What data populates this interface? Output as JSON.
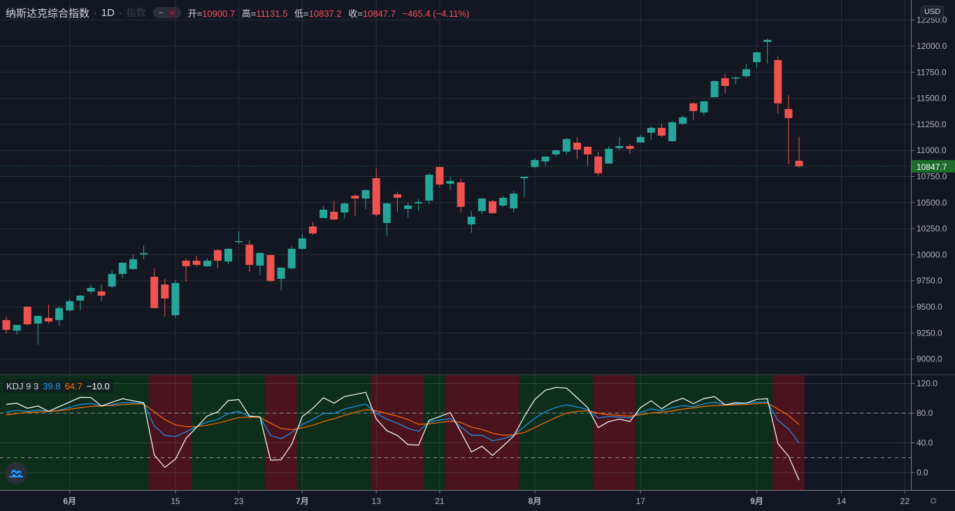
{
  "header": {
    "symbol": "纳斯达克综合指数",
    "interval": "1D",
    "sep": "·",
    "faded": "指数",
    "eye_icon": "−",
    "wave_icon": "≈",
    "open_label": "开=",
    "open": "10900.7",
    "high_label": "高=",
    "high": "11131.5",
    "low_label": "低=",
    "low": "10837.2",
    "close_label": "收=",
    "close": "10847.7",
    "change": "−465.4 (−4.11%)"
  },
  "currency": "USD",
  "last_price_label": "10847.7",
  "kdj_legend": {
    "name": "KDJ 9 3",
    "k": "39.8",
    "d": "64.7",
    "j": "−10.0"
  },
  "colors": {
    "up": "#26a69a",
    "down": "#ef5350",
    "k": "#2196f3",
    "d": "#ff6d00",
    "j": "#ffffff",
    "bull_band": "#0d2e1b",
    "bear_band": "#4a131d",
    "last_price": "#1e6b2a"
  },
  "chart_data": [
    {
      "type": "candlestick",
      "title": "纳斯达克综合指数 1D",
      "ylim": [
        8857,
        12442
      ],
      "yticks": [
        9000,
        9250,
        9500,
        9750,
        10000,
        10250,
        10500,
        10750,
        11000,
        11250,
        11500,
        11750,
        12000,
        12250
      ],
      "xticks": [
        {
          "label": "6月",
          "index": 6
        },
        {
          "label": "15",
          "index": 16
        },
        {
          "label": "23",
          "index": 22
        },
        {
          "label": "7月",
          "index": 28
        },
        {
          "label": "13",
          "index": 35
        },
        {
          "label": "21",
          "index": 41
        },
        {
          "label": "8月",
          "index": 50
        },
        {
          "label": "17",
          "index": 60
        },
        {
          "label": "9月",
          "index": 71
        },
        {
          "label": "14",
          "index": 79
        },
        {
          "label": "22",
          "index": 85
        }
      ],
      "last_price": 10847.7,
      "ohlc": [
        [
          9374,
          9407,
          9246,
          9280
        ],
        [
          9273,
          9330,
          9235,
          9327
        ],
        [
          9501,
          9505,
          9325,
          9333
        ],
        [
          9340,
          9414,
          9139,
          9414
        ],
        [
          9394,
          9521,
          9340,
          9360
        ],
        [
          9374,
          9508,
          9320,
          9488
        ],
        [
          9467,
          9575,
          9454,
          9555
        ],
        [
          9561,
          9615,
          9467,
          9608
        ],
        [
          9648,
          9709,
          9622,
          9682
        ],
        [
          9648,
          9715,
          9555,
          9608
        ],
        [
          9695,
          9849,
          9682,
          9816
        ],
        [
          9816,
          9930,
          9776,
          9923
        ],
        [
          9863,
          10003,
          9856,
          9957
        ],
        [
          10003,
          10090,
          9957,
          10016
        ],
        [
          9789,
          9870,
          9488,
          9488
        ],
        [
          9715,
          9769,
          9407,
          9581
        ],
        [
          9421,
          9756,
          9394,
          9729
        ],
        [
          9943,
          9963,
          9742,
          9890
        ],
        [
          9943,
          9990,
          9883,
          9903
        ],
        [
          9890,
          9963,
          9883,
          9943
        ],
        [
          10044,
          10057,
          9870,
          9943
        ],
        [
          9936,
          10064,
          9910,
          10057
        ],
        [
          10131,
          10225,
          10104,
          10131
        ],
        [
          10097,
          10137,
          9836,
          9903
        ],
        [
          9896,
          10024,
          9802,
          10017
        ],
        [
          9997,
          10003,
          9742,
          9749
        ],
        [
          9769,
          9876,
          9655,
          9876
        ],
        [
          9870,
          10084,
          9856,
          10057
        ],
        [
          10057,
          10198,
          10044,
          10157
        ],
        [
          10271,
          10312,
          10191,
          10204
        ],
        [
          10352,
          10466,
          10352,
          10432
        ],
        [
          10412,
          10519,
          10332,
          10338
        ],
        [
          10405,
          10499,
          10345,
          10492
        ],
        [
          10566,
          10580,
          10372,
          10539
        ],
        [
          10539,
          10626,
          10439,
          10620
        ],
        [
          10734,
          10827,
          10365,
          10385
        ],
        [
          10305,
          10499,
          10178,
          10492
        ],
        [
          10580,
          10606,
          10412,
          10546
        ],
        [
          10439,
          10499,
          10358,
          10472
        ],
        [
          10493,
          10533,
          10419,
          10506
        ],
        [
          10519,
          10787,
          10486,
          10767
        ],
        [
          10841,
          10848,
          10647,
          10673
        ],
        [
          10680,
          10747,
          10620,
          10707
        ],
        [
          10693,
          10727,
          10405,
          10459
        ],
        [
          10292,
          10419,
          10211,
          10365
        ],
        [
          10419,
          10546,
          10392,
          10539
        ],
        [
          10513,
          10526,
          10392,
          10399
        ],
        [
          10472,
          10566,
          10459,
          10546
        ],
        [
          10445,
          10613,
          10405,
          10586
        ],
        [
          10733,
          10747,
          10553,
          10747
        ],
        [
          10841,
          10928,
          10828,
          10908
        ],
        [
          10894,
          10941,
          10848,
          10941
        ],
        [
          10962,
          11002,
          10941,
          11002
        ],
        [
          10988,
          11122,
          10962,
          11109
        ],
        [
          11075,
          11129,
          10915,
          11008
        ],
        [
          11035,
          11042,
          10848,
          10962
        ],
        [
          10941,
          10988,
          10760,
          10781
        ],
        [
          10874,
          11042,
          10874,
          11015
        ],
        [
          11022,
          11129,
          11002,
          11042
        ],
        [
          11042,
          11062,
          10968,
          11015
        ],
        [
          11075,
          11149,
          11075,
          11129
        ],
        [
          11169,
          11230,
          11102,
          11216
        ],
        [
          11216,
          11256,
          11129,
          11142
        ],
        [
          11089,
          11283,
          11082,
          11270
        ],
        [
          11256,
          11330,
          11243,
          11317
        ],
        [
          11451,
          11464,
          11290,
          11377
        ],
        [
          11364,
          11471,
          11337,
          11471
        ],
        [
          11511,
          11672,
          11504,
          11665
        ],
        [
          11692,
          11732,
          11544,
          11618
        ],
        [
          11692,
          11712,
          11632,
          11699
        ],
        [
          11712,
          11832,
          11692,
          11779
        ],
        [
          11846,
          11946,
          11792,
          11940
        ],
        [
          12040,
          12074,
          11832,
          12060
        ],
        [
          11866,
          11900,
          11357,
          11451
        ],
        [
          11397,
          11531,
          10868,
          11310
        ],
        [
          10900.7,
          11131.5,
          10837.2,
          10847.7
        ]
      ]
    },
    {
      "type": "line",
      "title": "KDJ 9 3",
      "ylim": [
        -23.5,
        130.8
      ],
      "yticks": [
        120,
        80,
        40,
        0
      ],
      "dashed_levels": [
        80,
        20
      ],
      "bear_bands": [
        [
          14,
          17
        ],
        [
          25,
          27
        ],
        [
          35,
          39
        ],
        [
          42,
          48
        ],
        [
          56,
          59
        ],
        [
          73,
          75
        ]
      ],
      "series": [
        {
          "name": "K",
          "values": [
            81.7,
            83.6,
            82.3,
            84.2,
            82.3,
            83.9,
            87.7,
            91.8,
            93,
            89.6,
            91.2,
            94,
            94,
            93.4,
            62.7,
            50,
            48.5,
            54.8,
            61.8,
            68.1,
            71.3,
            79.5,
            82.3,
            75.4,
            74.7,
            50,
            45.6,
            53.8,
            64.9,
            71.3,
            79.5,
            79.5,
            85.5,
            89,
            92.2,
            80,
            71.6,
            66.5,
            59.6,
            55.4,
            68.1,
            70.6,
            72.8,
            61.5,
            50.4,
            50.4,
            42.8,
            45.6,
            50,
            61.8,
            73.2,
            82,
            87.7,
            91.2,
            88.4,
            84.9,
            73.5,
            75.4,
            74.7,
            73.5,
            80.7,
            85.8,
            83.3,
            87.4,
            90.2,
            88.6,
            92.5,
            94.7,
            91.2,
            92.2,
            93.4,
            94.7,
            95,
            70.3,
            58.9,
            39.8
          ]
        },
        {
          "name": "D",
          "values": [
            77.6,
            79.5,
            80.8,
            81.7,
            82.3,
            83.3,
            85.2,
            87.4,
            89,
            89.6,
            90.2,
            91.5,
            92.2,
            92.2,
            81.7,
            71.3,
            64.3,
            61.8,
            61.8,
            63.7,
            66.5,
            70.3,
            74.1,
            74.4,
            74.4,
            66.5,
            59.2,
            57.7,
            60.2,
            63.7,
            68.7,
            72.5,
            77,
            81.1,
            84.6,
            83.3,
            79.5,
            76,
            71.5,
            64.9,
            65.5,
            67.5,
            69,
            67.5,
            61.2,
            58,
            53,
            50.4,
            50.8,
            54,
            60.5,
            67.5,
            74.1,
            80,
            82.5,
            83.2,
            80,
            77.8,
            76.8,
            75.9,
            77.8,
            80.3,
            81.3,
            82.9,
            85.5,
            87,
            89,
            90.2,
            90.8,
            91.2,
            91.5,
            92.5,
            93.4,
            85.5,
            76.9,
            64.7
          ]
        },
        {
          "name": "J",
          "values": [
            91.8,
            93.4,
            86.5,
            89.6,
            82.3,
            88.7,
            95,
            101.3,
            101,
            89.6,
            94.7,
            99.4,
            96.6,
            94,
            23.8,
            7,
            18,
            46,
            61,
            76,
            81.7,
            96.9,
            98.2,
            76,
            75,
            16.8,
            17.2,
            38,
            75.4,
            86.5,
            100.7,
            93.4,
            102.3,
            105.1,
            108,
            72.2,
            56.4,
            50,
            37.7,
            37,
            70.3,
            75.4,
            80.7,
            54.8,
            27.8,
            35.4,
            23.2,
            35.8,
            49.1,
            75.4,
            98.5,
            110.8,
            114.6,
            113.7,
            100.7,
            87.4,
            60.5,
            68.6,
            71.9,
            68.7,
            87.4,
            96.6,
            85.8,
            95,
            100,
            92.7,
            99.7,
            102.3,
            91.2,
            94,
            93.4,
            98.5,
            99.4,
            39,
            22.2,
            -10
          ]
        }
      ]
    }
  ]
}
